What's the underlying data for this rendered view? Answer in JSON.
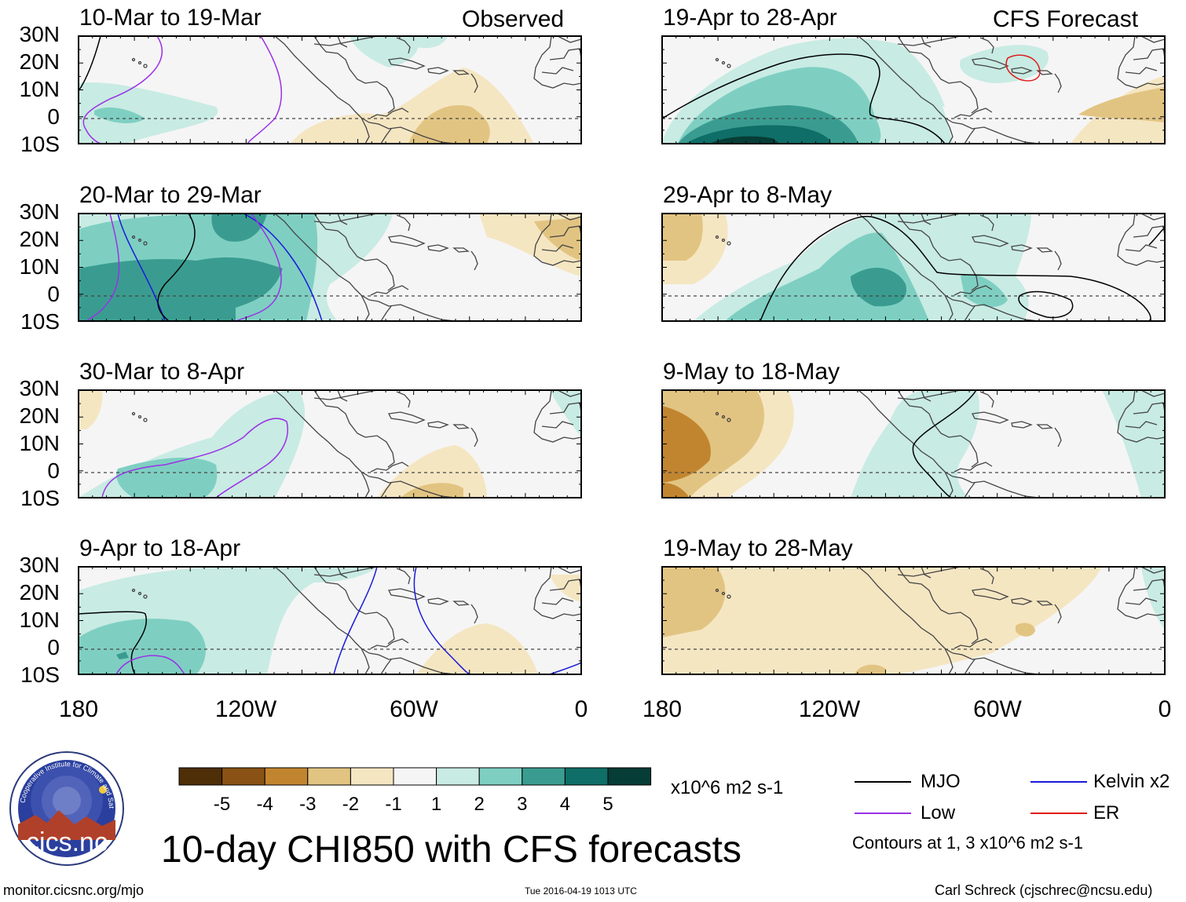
{
  "figure": {
    "title": "10-day CHI850 with CFS forecasts",
    "observed_label": "Observed",
    "forecast_label": "CFS Forecast",
    "url": "monitor.cicsnc.org/mjo",
    "timestamp": "Tue 2016-04-19 1013 UTC",
    "author": "Carl Schreck (cjschrec@ncsu.edu)"
  },
  "logo": {
    "name": "cics.nc",
    "arc_text": "Cooperative Institute for Climate and Satellites"
  },
  "axes": {
    "lat_ticks": [
      "30N",
      "20N",
      "10N",
      "0",
      "10S"
    ],
    "lon_ticks": [
      "180",
      "120W",
      "60W",
      "0"
    ],
    "lat_range": [
      -10,
      30
    ],
    "lon_range": [
      -180,
      0
    ]
  },
  "colorbar": {
    "units": "x10^6 m2 s-1",
    "labels": [
      "-5",
      "-4",
      "-3",
      "-2",
      "-1",
      "1",
      "2",
      "3",
      "4",
      "5"
    ],
    "colors": [
      "#4e2f08",
      "#8a5214",
      "#c2852f",
      "#e2c482",
      "#f5e6c2",
      "#f5f5f5",
      "#c8ebe3",
      "#7ecfc2",
      "#3a9c90",
      "#0f6e67",
      "#063d36"
    ]
  },
  "legend": {
    "items": [
      {
        "label": "MJO",
        "color": "#000000"
      },
      {
        "label": "Kelvin x2",
        "color": "#1a1adb"
      },
      {
        "label": "Low",
        "color": "#9b30e6"
      },
      {
        "label": "ER",
        "color": "#e01818"
      }
    ],
    "contour_note": "Contours at 1, 3 x10^6 m2 s-1"
  },
  "chart_data": {
    "type": "heatmap",
    "variable": "CHI850 (850-hPa velocity potential) anomaly",
    "units": "x10^6 m2 s-1",
    "panels": [
      {
        "period": "10-Mar to 19-Mar",
        "source": "Observed"
      },
      {
        "period": "20-Mar to 29-Mar",
        "source": "Observed"
      },
      {
        "period": "30-Mar to 8-Apr",
        "source": "Observed"
      },
      {
        "period": "9-Apr to 18-Apr",
        "source": "Observed"
      },
      {
        "period": "19-Apr to 28-Apr",
        "source": "CFS Forecast"
      },
      {
        "period": "29-Apr to 8-May",
        "source": "CFS Forecast"
      },
      {
        "period": "9-May to 18-May",
        "source": "CFS Forecast"
      },
      {
        "period": "19-May to 28-May",
        "source": "CFS Forecast"
      }
    ]
  }
}
